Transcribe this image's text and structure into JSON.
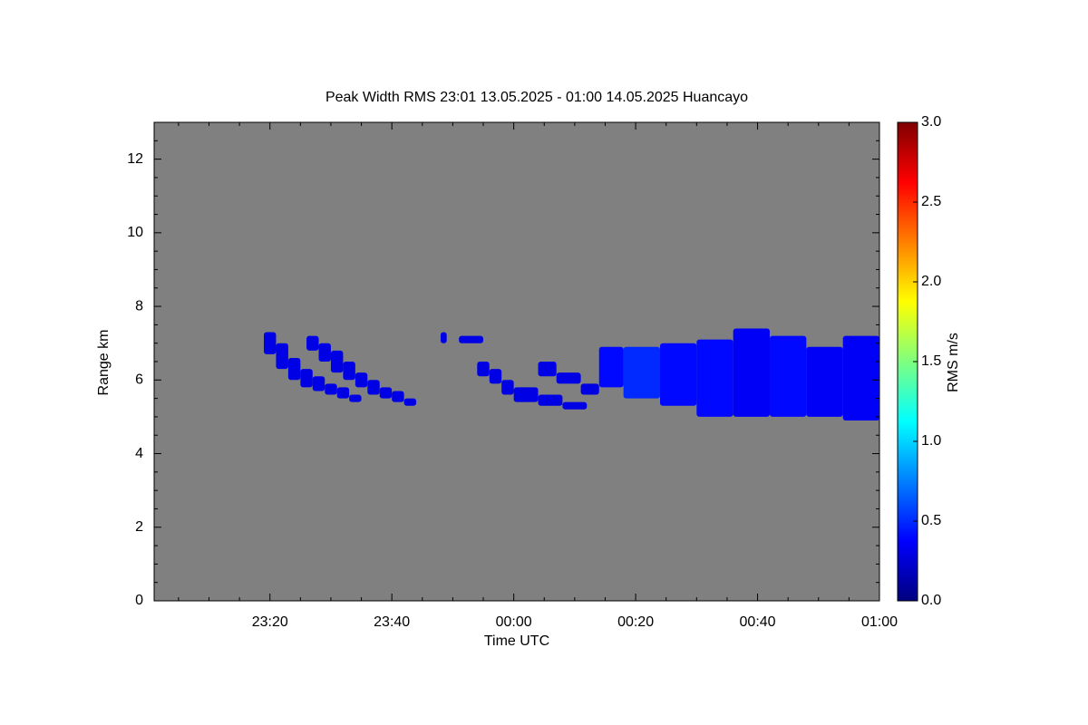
{
  "chart_data": {
    "type": "time-height",
    "title": "Peak Width RMS   23:01 13.05.2025 - 01:00 14.05.2025 Huancayo",
    "x_label": "Time UTC",
    "y_label": "Range km",
    "colorbar_label": "RMS m/s",
    "background": "#808080",
    "xlim": [
      1,
      120
    ],
    "xticks": [
      {
        "value": 20,
        "label": "23:20"
      },
      {
        "value": 40,
        "label": "23:40"
      },
      {
        "value": 60,
        "label": "00:00"
      },
      {
        "value": 80,
        "label": "00:20"
      },
      {
        "value": 100,
        "label": "00:40"
      },
      {
        "value": 120,
        "label": "01:00"
      }
    ],
    "xminorticks": [
      5,
      10,
      15,
      25,
      30,
      35,
      45,
      50,
      55,
      65,
      70,
      75,
      85,
      90,
      95,
      105,
      110,
      115
    ],
    "ylim": [
      0,
      13
    ],
    "yticks": [
      0,
      2,
      4,
      6,
      8,
      10,
      12
    ],
    "yminorticks": [
      0.5,
      1,
      1.5,
      2.5,
      3,
      3.5,
      4.5,
      5,
      5.5,
      6.5,
      7,
      7.5,
      8.5,
      9,
      9.5,
      10.5,
      11,
      11.5,
      12.5
    ],
    "clim": [
      0,
      3
    ],
    "cticks": [
      {
        "value": 0,
        "label": "0.0"
      },
      0.5,
      {
        "value": 1,
        "label": "1.0"
      },
      1.5,
      {
        "value": 2,
        "label": "2.0"
      },
      2.5,
      {
        "value": 3,
        "label": "3.0"
      }
    ],
    "colormap": [
      "#00007f",
      "#0000ff",
      "#007fff",
      "#00ffff",
      "#7fff7f",
      "#ffff00",
      "#ff7f00",
      "#ff0000",
      "#7f0000"
    ],
    "echoes": [
      {
        "t0": 19,
        "t1": 21,
        "bottom": 6.7,
        "top": 7.3,
        "rms": 0.3
      },
      {
        "t0": 21,
        "t1": 23,
        "bottom": 6.3,
        "top": 7.0,
        "rms": 0.3
      },
      {
        "t0": 23,
        "t1": 25,
        "bottom": 6.0,
        "top": 6.6,
        "rms": 0.3
      },
      {
        "t0": 25,
        "t1": 27,
        "bottom": 5.8,
        "top": 6.3,
        "rms": 0.3
      },
      {
        "t0": 27,
        "t1": 29,
        "bottom": 5.7,
        "top": 6.1,
        "rms": 0.3
      },
      {
        "t0": 29,
        "t1": 31,
        "bottom": 5.6,
        "top": 5.9,
        "rms": 0.3
      },
      {
        "t0": 31,
        "t1": 33,
        "bottom": 5.5,
        "top": 5.8,
        "rms": 0.3
      },
      {
        "t0": 33,
        "t1": 35,
        "bottom": 5.4,
        "top": 5.6,
        "rms": 0.3
      },
      {
        "t0": 26,
        "t1": 28,
        "bottom": 6.8,
        "top": 7.2,
        "rms": 0.3
      },
      {
        "t0": 28,
        "t1": 30,
        "bottom": 6.5,
        "top": 7.0,
        "rms": 0.3
      },
      {
        "t0": 30,
        "t1": 32,
        "bottom": 6.2,
        "top": 6.8,
        "rms": 0.3
      },
      {
        "t0": 32,
        "t1": 34,
        "bottom": 6.0,
        "top": 6.5,
        "rms": 0.3
      },
      {
        "t0": 34,
        "t1": 36,
        "bottom": 5.8,
        "top": 6.2,
        "rms": 0.3
      },
      {
        "t0": 36,
        "t1": 38,
        "bottom": 5.6,
        "top": 6.0,
        "rms": 0.3
      },
      {
        "t0": 38,
        "t1": 40,
        "bottom": 5.5,
        "top": 5.8,
        "rms": 0.3
      },
      {
        "t0": 40,
        "t1": 42,
        "bottom": 5.4,
        "top": 5.7,
        "rms": 0.3
      },
      {
        "t0": 42,
        "t1": 44,
        "bottom": 5.3,
        "top": 5.5,
        "rms": 0.3
      },
      {
        "t0": 48,
        "t1": 49,
        "bottom": 7.0,
        "top": 7.3,
        "rms": 0.3
      },
      {
        "t0": 51,
        "t1": 55,
        "bottom": 7.0,
        "top": 7.2,
        "rms": 0.3
      },
      {
        "t0": 54,
        "t1": 56,
        "bottom": 6.1,
        "top": 6.5,
        "rms": 0.3
      },
      {
        "t0": 56,
        "t1": 58,
        "bottom": 5.9,
        "top": 6.3,
        "rms": 0.3
      },
      {
        "t0": 58,
        "t1": 60,
        "bottom": 5.6,
        "top": 6.0,
        "rms": 0.3
      },
      {
        "t0": 60,
        "t1": 64,
        "bottom": 5.4,
        "top": 5.8,
        "rms": 0.3
      },
      {
        "t0": 64,
        "t1": 68,
        "bottom": 5.3,
        "top": 5.6,
        "rms": 0.3
      },
      {
        "t0": 68,
        "t1": 72,
        "bottom": 5.2,
        "top": 5.4,
        "rms": 0.3
      },
      {
        "t0": 64,
        "t1": 67,
        "bottom": 6.1,
        "top": 6.5,
        "rms": 0.3
      },
      {
        "t0": 67,
        "t1": 71,
        "bottom": 5.9,
        "top": 6.2,
        "rms": 0.3
      },
      {
        "t0": 71,
        "t1": 74,
        "bottom": 5.6,
        "top": 5.9,
        "rms": 0.3
      },
      {
        "t0": 74,
        "t1": 78,
        "bottom": 5.8,
        "top": 6.9,
        "rms": 0.4
      },
      {
        "t0": 78,
        "t1": 84,
        "bottom": 5.5,
        "top": 6.9,
        "rms": 0.5
      },
      {
        "t0": 84,
        "t1": 90,
        "bottom": 5.3,
        "top": 7.0,
        "rms": 0.4
      },
      {
        "t0": 90,
        "t1": 96,
        "bottom": 5.0,
        "top": 7.1,
        "rms": 0.4
      },
      {
        "t0": 96,
        "t1": 102,
        "bottom": 5.0,
        "top": 7.4,
        "rms": 0.35
      },
      {
        "t0": 102,
        "t1": 108,
        "bottom": 5.0,
        "top": 7.2,
        "rms": 0.4
      },
      {
        "t0": 108,
        "t1": 114,
        "bottom": 5.0,
        "top": 6.9,
        "rms": 0.35
      },
      {
        "t0": 114,
        "t1": 120,
        "bottom": 4.9,
        "top": 7.2,
        "rms": 0.35
      }
    ]
  }
}
